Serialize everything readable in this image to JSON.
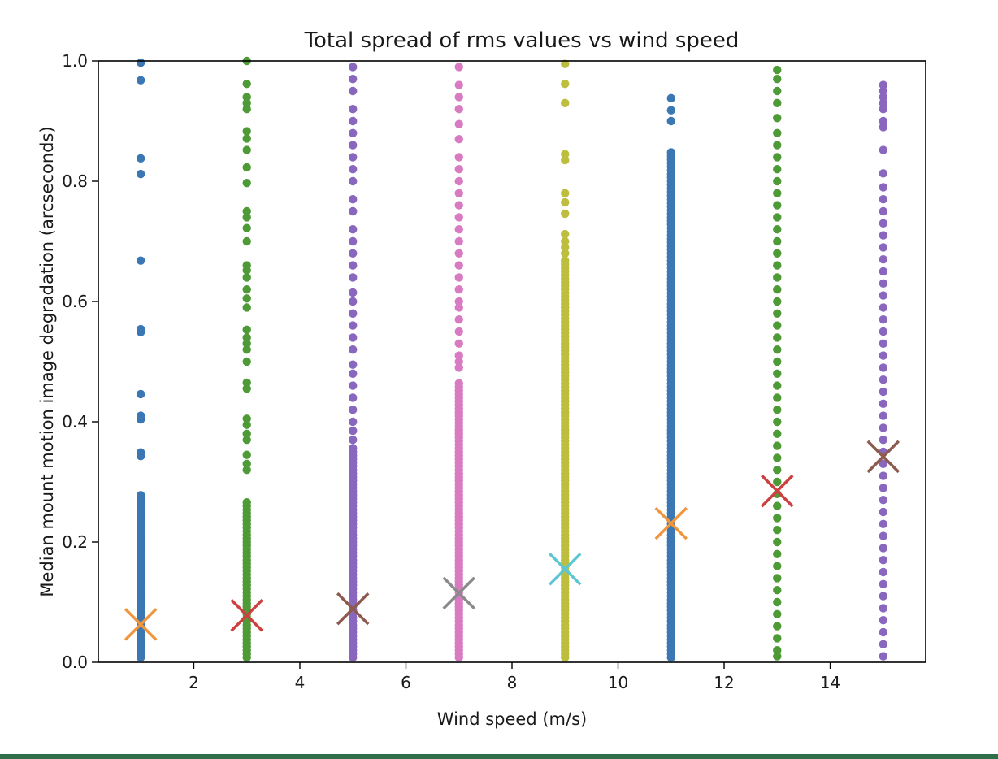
{
  "chart_data": {
    "type": "scatter",
    "title": "Total spread of rms values vs wind speed",
    "xlabel": "Wind speed (m/s)",
    "ylabel": "Median mount motion image degradation (arcseconds)",
    "xlim": [
      0.2,
      15.8
    ],
    "ylim": [
      0.0,
      1.0
    ],
    "xticks": [
      2,
      4,
      6,
      8,
      10,
      12,
      14
    ],
    "yticks": [
      0.0,
      0.2,
      0.4,
      0.6,
      0.8,
      1.0
    ],
    "xtick_labels": [
      "2",
      "4",
      "6",
      "8",
      "10",
      "12",
      "14"
    ],
    "ytick_labels": [
      "0.0",
      "0.2",
      "0.4",
      "0.6",
      "0.8",
      "1.0"
    ],
    "grid": false,
    "legend": "none",
    "scatter_series": [
      {
        "x": 1,
        "color": "#3b78b3",
        "dense_max": 0.28,
        "outliers": [
          0.997,
          0.968,
          0.838,
          0.812,
          0.668,
          0.554,
          0.549,
          0.446,
          0.41,
          0.404,
          0.349,
          0.343
        ]
      },
      {
        "x": 3,
        "color": "#4e9a37",
        "dense_max": 0.27,
        "outliers": [
          1.0,
          0.962,
          0.94,
          0.93,
          0.92,
          0.883,
          0.871,
          0.852,
          0.823,
          0.797,
          0.75,
          0.74,
          0.722,
          0.7,
          0.66,
          0.652,
          0.64,
          0.62,
          0.605,
          0.59,
          0.553,
          0.54,
          0.53,
          0.52,
          0.5,
          0.465,
          0.455,
          0.405,
          0.395,
          0.38,
          0.37,
          0.345,
          0.33,
          0.32
        ]
      },
      {
        "x": 5,
        "color": "#8a67bf",
        "dense_max": 0.36,
        "outliers": [
          0.99,
          0.97,
          0.95,
          0.92,
          0.9,
          0.88,
          0.86,
          0.84,
          0.82,
          0.8,
          0.77,
          0.75,
          0.72,
          0.7,
          0.68,
          0.66,
          0.64,
          0.615,
          0.6,
          0.58,
          0.56,
          0.54,
          0.52,
          0.495,
          0.48,
          0.46,
          0.44,
          0.42,
          0.4,
          0.385,
          0.37
        ]
      },
      {
        "x": 7,
        "color": "#d97bc2",
        "dense_max": 0.47,
        "outliers": [
          0.99,
          0.96,
          0.94,
          0.92,
          0.895,
          0.87,
          0.84,
          0.82,
          0.8,
          0.78,
          0.76,
          0.74,
          0.72,
          0.7,
          0.68,
          0.66,
          0.64,
          0.62,
          0.6,
          0.59,
          0.57,
          0.55,
          0.53,
          0.51,
          0.5,
          0.49
        ]
      },
      {
        "x": 9,
        "color": "#bdbd3e",
        "dense_max": 0.67,
        "outliers": [
          0.995,
          0.962,
          0.93,
          0.845,
          0.835,
          0.78,
          0.765,
          0.746,
          0.712,
          0.7,
          0.69,
          0.68
        ]
      },
      {
        "x": 11,
        "color": "#3b78b3",
        "dense_max": 0.85,
        "outliers": [
          0.938,
          0.918,
          0.9
        ]
      },
      {
        "x": 13,
        "color": "#4e9a37",
        "dense_max": 0.0,
        "outliers": [
          0.985,
          0.97,
          0.95,
          0.93,
          0.905,
          0.88,
          0.86,
          0.84,
          0.82,
          0.8,
          0.78,
          0.76,
          0.74,
          0.72,
          0.7,
          0.68,
          0.66,
          0.64,
          0.62,
          0.6,
          0.58,
          0.56,
          0.54,
          0.52,
          0.5,
          0.48,
          0.46,
          0.44,
          0.42,
          0.4,
          0.38,
          0.36,
          0.34,
          0.32,
          0.3,
          0.28,
          0.26,
          0.24,
          0.22,
          0.2,
          0.18,
          0.16,
          0.14,
          0.12,
          0.1,
          0.08,
          0.06,
          0.04,
          0.02,
          0.01
        ]
      },
      {
        "x": 15,
        "color": "#8a67bf",
        "dense_max": 0.0,
        "outliers": [
          0.96,
          0.95,
          0.94,
          0.93,
          0.92,
          0.9,
          0.89,
          0.852,
          0.813,
          0.79,
          0.77,
          0.75,
          0.73,
          0.71,
          0.69,
          0.67,
          0.65,
          0.63,
          0.61,
          0.59,
          0.57,
          0.55,
          0.53,
          0.51,
          0.49,
          0.47,
          0.45,
          0.43,
          0.41,
          0.39,
          0.37,
          0.35,
          0.33,
          0.31,
          0.29,
          0.27,
          0.25,
          0.23,
          0.21,
          0.19,
          0.17,
          0.15,
          0.13,
          0.11,
          0.09,
          0.07,
          0.05,
          0.03,
          0.01
        ]
      }
    ],
    "median_markers": [
      {
        "x": 1,
        "y": 0.063,
        "color": "#f0963c"
      },
      {
        "x": 3,
        "y": 0.078,
        "color": "#cc4040"
      },
      {
        "x": 5,
        "y": 0.089,
        "color": "#8c5a4e"
      },
      {
        "x": 7,
        "y": 0.115,
        "color": "#8a8a8a"
      },
      {
        "x": 9,
        "y": 0.155,
        "color": "#5cc6d3"
      },
      {
        "x": 11,
        "y": 0.231,
        "color": "#f0963c"
      },
      {
        "x": 13,
        "y": 0.285,
        "color": "#cc4040"
      },
      {
        "x": 15,
        "y": 0.342,
        "color": "#8c5a4e"
      }
    ]
  }
}
